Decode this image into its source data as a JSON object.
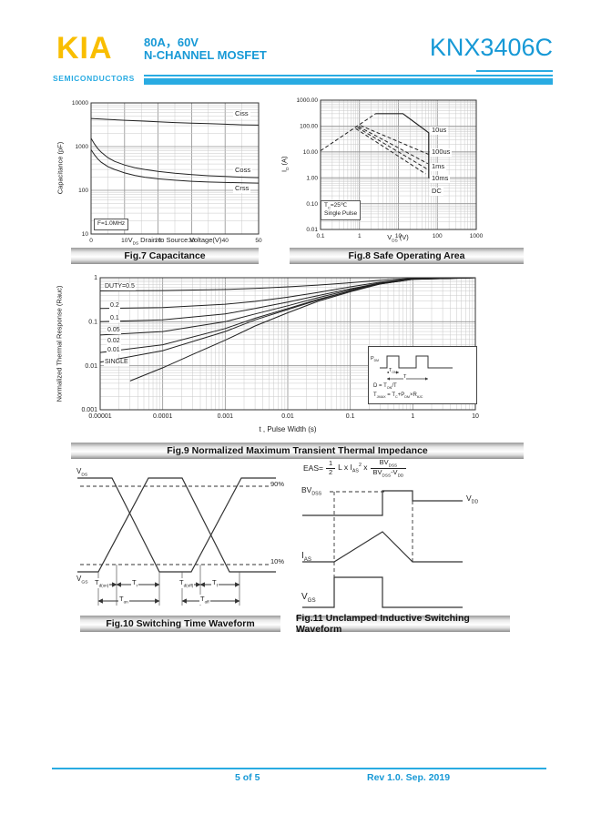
{
  "header": {
    "logo_text": "KIA",
    "logo_sub": "SEMICONDUCTORS",
    "rating": "80A，60V",
    "device_type": "N-CHANNEL MOSFET",
    "part_number": "KNX3406C"
  },
  "colors": {
    "accent_blue": "#1799d6",
    "bar_cyan": "#29abe2",
    "logo_yellow": "#f9be00"
  },
  "chart_data": [
    {
      "id": "fig7",
      "type": "line",
      "title": "Fig.7 Capacitance",
      "xlabel_rich": [
        [
          "t",
          "V"
        ],
        [
          "b",
          "DS"
        ],
        [
          "t",
          " Drain to Source Voltage(V)"
        ]
      ],
      "ylabel": "Capacitance (pF)",
      "xscale": "linear",
      "xlim": [
        0,
        50
      ],
      "xminor": 5,
      "xtick_values": [
        0,
        10,
        20,
        30,
        40,
        50
      ],
      "xtick_labels": [
        "0",
        "10",
        "20",
        "30",
        "40",
        "50"
      ],
      "yscale": "log",
      "ylim": [
        10,
        10000
      ],
      "ytick_values": [
        10,
        100,
        1000,
        10000
      ],
      "ytick_labels": [
        "10",
        "100",
        "1000",
        "10000"
      ],
      "grid": true,
      "annotation": "F=1.0MHz",
      "series": [
        {
          "name": "Ciss",
          "dash": false,
          "points": [
            [
              0,
              4400
            ],
            [
              5,
              4200
            ],
            [
              10,
              4000
            ],
            [
              15,
              3850
            ],
            [
              20,
              3700
            ],
            [
              25,
              3550
            ],
            [
              30,
              3450
            ],
            [
              35,
              3350
            ],
            [
              40,
              3250
            ],
            [
              45,
              3150
            ],
            [
              50,
              3100
            ]
          ]
        },
        {
          "name": "Coss",
          "dash": false,
          "points": [
            [
              0,
              1550
            ],
            [
              1,
              1150
            ],
            [
              2,
              900
            ],
            [
              3,
              750
            ],
            [
              5,
              560
            ],
            [
              7,
              460
            ],
            [
              10,
              380
            ],
            [
              13,
              330
            ],
            [
              16,
              300
            ],
            [
              20,
              270
            ],
            [
              25,
              245
            ],
            [
              30,
              228
            ],
            [
              35,
              215
            ],
            [
              40,
              207
            ],
            [
              45,
              200
            ],
            [
              50,
              195
            ]
          ]
        },
        {
          "name": "Crss",
          "dash": false,
          "points": [
            [
              0,
              850
            ],
            [
              1,
              650
            ],
            [
              2,
              520
            ],
            [
              3,
              440
            ],
            [
              5,
              350
            ],
            [
              7,
              300
            ],
            [
              10,
              250
            ],
            [
              13,
              220
            ],
            [
              16,
              200
            ],
            [
              20,
              183
            ],
            [
              25,
              170
            ],
            [
              30,
              161
            ],
            [
              35,
              155
            ],
            [
              40,
              151
            ],
            [
              45,
              148
            ],
            [
              50,
              146
            ]
          ]
        }
      ]
    },
    {
      "id": "fig8",
      "type": "line",
      "title": "Fig.8 Safe Operating Area",
      "xlabel_rich": [
        [
          "t",
          "V"
        ],
        [
          "b",
          "DS"
        ],
        [
          "t",
          " (V)"
        ]
      ],
      "ylabel_rich": [
        [
          "t",
          "I"
        ],
        [
          "b",
          "D"
        ],
        [
          "t",
          " (A)"
        ]
      ],
      "xscale": "log",
      "xlim": [
        0.1,
        1000
      ],
      "xtick_values": [
        0.1,
        1,
        10,
        100,
        1000
      ],
      "xtick_labels": [
        "0.1",
        "1",
        "10",
        "100",
        "1000"
      ],
      "yscale": "log",
      "ylim": [
        0.01,
        1000
      ],
      "ytick_values": [
        0.01,
        0.1,
        1,
        10,
        100,
        1000
      ],
      "ytick_labels": [
        "0.01",
        "0.10",
        "1.00",
        "10.00",
        "100.00",
        "1000.00"
      ],
      "grid": true,
      "annotation_lines": [
        [
          [
            "t",
            "T"
          ],
          [
            "b",
            "C"
          ],
          [
            "t",
            "=25℃"
          ]
        ],
        [
          [
            "t",
            "Single Pulse"
          ]
        ]
      ],
      "series": [
        {
          "name": "",
          "dash": true,
          "points": [
            [
              0.1,
              11
            ],
            [
              2.6,
              300
            ]
          ]
        },
        {
          "name": "10us",
          "dash": false,
          "w": 1.2,
          "points": [
            [
              2.6,
              300
            ],
            [
              13,
              300
            ],
            [
              60,
              55
            ],
            [
              60,
              0.95
            ]
          ]
        },
        {
          "name": "100us",
          "dash": true,
          "points": [
            [
              1.05,
              105
            ],
            [
              60,
              8
            ]
          ]
        },
        {
          "name": "1ms",
          "dash": true,
          "points": [
            [
              0.95,
              95
            ],
            [
              57,
              3.5
            ]
          ]
        },
        {
          "name": "10ms",
          "dash": true,
          "points": [
            [
              0.88,
              88
            ],
            [
              54,
              2.2
            ]
          ]
        },
        {
          "name": "DC",
          "dash": true,
          "points": [
            [
              0.8,
              80
            ],
            [
              50,
              1.4
            ]
          ]
        }
      ]
    },
    {
      "id": "fig9",
      "type": "line",
      "title": "Fig.9 Normalized Maximum Transient Thermal Impedance",
      "xlabel": "t , Pulse Width (s)",
      "ylabel": "Normalized Thermal Response (Rauc)",
      "xscale": "log",
      "xlim": [
        1e-05,
        10
      ],
      "xtick_values": [
        1e-05,
        0.0001,
        0.001,
        0.01,
        0.1,
        1,
        10
      ],
      "xtick_labels": [
        "0.00001",
        "0.0001",
        "0.001",
        "0.01",
        "0.1",
        "1",
        "10"
      ],
      "yscale": "log",
      "ylim": [
        0.001,
        1
      ],
      "ytick_values": [
        0.001,
        0.01,
        0.1,
        1
      ],
      "ytick_labels": [
        "0.001",
        "0.01",
        "0.1",
        "1"
      ],
      "grid": true,
      "series": [
        {
          "name": "DUTY=0.5",
          "points": [
            [
              1e-05,
              0.5
            ],
            [
              0.0001,
              0.51
            ],
            [
              0.001,
              0.54
            ],
            [
              0.003,
              0.57
            ],
            [
              0.01,
              0.62
            ],
            [
              0.03,
              0.68
            ],
            [
              0.1,
              0.77
            ],
            [
              0.3,
              0.87
            ],
            [
              1,
              0.97
            ],
            [
              10,
              1.0
            ]
          ]
        },
        {
          "name": "0.2",
          "points": [
            [
              1e-05,
              0.2
            ],
            [
              0.0001,
              0.21
            ],
            [
              0.001,
              0.25
            ],
            [
              0.003,
              0.29
            ],
            [
              0.01,
              0.36
            ],
            [
              0.03,
              0.46
            ],
            [
              0.1,
              0.62
            ],
            [
              0.3,
              0.79
            ],
            [
              1,
              0.95
            ],
            [
              10,
              1.0
            ]
          ]
        },
        {
          "name": "0.1",
          "points": [
            [
              1e-05,
              0.1
            ],
            [
              0.0001,
              0.11
            ],
            [
              0.001,
              0.15
            ],
            [
              0.003,
              0.2
            ],
            [
              0.01,
              0.28
            ],
            [
              0.03,
              0.39
            ],
            [
              0.1,
              0.56
            ],
            [
              0.3,
              0.76
            ],
            [
              1,
              0.94
            ],
            [
              10,
              1.0
            ]
          ]
        },
        {
          "name": "0.05",
          "points": [
            [
              1e-05,
              0.05
            ],
            [
              0.0001,
              0.06
            ],
            [
              0.001,
              0.1
            ],
            [
              0.003,
              0.15
            ],
            [
              0.01,
              0.23
            ],
            [
              0.03,
              0.35
            ],
            [
              0.1,
              0.53
            ],
            [
              0.3,
              0.74
            ],
            [
              1,
              0.93
            ],
            [
              10,
              1.0
            ]
          ]
        },
        {
          "name": "0.02",
          "points": [
            [
              1e-05,
              0.02
            ],
            [
              0.0001,
              0.03
            ],
            [
              0.001,
              0.07
            ],
            [
              0.003,
              0.12
            ],
            [
              0.01,
              0.2
            ],
            [
              0.03,
              0.32
            ],
            [
              0.1,
              0.5
            ],
            [
              0.3,
              0.73
            ],
            [
              1,
              0.93
            ],
            [
              10,
              1.0
            ]
          ]
        },
        {
          "name": "0.01",
          "points": [
            [
              1e-05,
              0.012
            ],
            [
              0.0001,
              0.022
            ],
            [
              0.001,
              0.06
            ],
            [
              0.003,
              0.11
            ],
            [
              0.01,
              0.19
            ],
            [
              0.03,
              0.31
            ],
            [
              0.1,
              0.5
            ],
            [
              0.3,
              0.72
            ],
            [
              1,
              0.92
            ],
            [
              10,
              1.0
            ]
          ]
        },
        {
          "name": "SINGLE",
          "points": [
            [
              3e-05,
              0.0045
            ],
            [
              0.0001,
              0.009
            ],
            [
              0.0003,
              0.018
            ],
            [
              0.001,
              0.038
            ],
            [
              0.003,
              0.08
            ],
            [
              0.01,
              0.16
            ],
            [
              0.03,
              0.29
            ],
            [
              0.1,
              0.48
            ],
            [
              0.3,
              0.72
            ],
            [
              1,
              0.92
            ],
            [
              10,
              1.0
            ]
          ]
        }
      ]
    }
  ],
  "fig9_inset": {
    "pdm": [
      [
        "t",
        "P"
      ],
      [
        "b",
        "DM"
      ]
    ],
    "ton": [
      [
        "t",
        "T"
      ],
      [
        "b",
        "ON"
      ]
    ],
    "period": "T",
    "f1": [
      [
        "t",
        "D = T"
      ],
      [
        "b",
        "ON"
      ],
      [
        "t",
        "/T"
      ]
    ],
    "f2": [
      [
        "t",
        "T"
      ],
      [
        "b",
        "JMAX"
      ],
      [
        "t",
        " = T"
      ],
      [
        "b",
        "C"
      ],
      [
        "t",
        "+P"
      ],
      [
        "b",
        "DM"
      ],
      [
        "t",
        "×R"
      ],
      [
        "b",
        "θJC"
      ]
    ]
  },
  "fig10": {
    "vds": [
      [
        "t",
        "V"
      ],
      [
        "b",
        "DS"
      ]
    ],
    "vgs": [
      [
        "t",
        "V"
      ],
      [
        "b",
        "GS"
      ]
    ],
    "p90": "90%",
    "p10": "10%",
    "td_on": [
      [
        "t",
        "T"
      ],
      [
        "b",
        "d(on)"
      ]
    ],
    "tr": [
      [
        "t",
        "T"
      ],
      [
        "b",
        "r"
      ]
    ],
    "td_off": [
      [
        "t",
        "T"
      ],
      [
        "b",
        "d(off)"
      ]
    ],
    "tf": [
      [
        "t",
        "T"
      ],
      [
        "b",
        "f"
      ]
    ],
    "t_on": [
      [
        "t",
        "T"
      ],
      [
        "b",
        "on"
      ]
    ],
    "t_off": [
      [
        "t",
        "T"
      ],
      [
        "b",
        "off"
      ]
    ]
  },
  "fig11": {
    "eas_lhs": "EAS=",
    "frac1_num": "1",
    "frac1_den": "2",
    "eas_mid": [
      [
        "t",
        "L x I"
      ],
      [
        "b",
        "AS"
      ],
      [
        "p",
        "2"
      ],
      [
        "t",
        " x"
      ]
    ],
    "frac2_num": [
      [
        "t",
        "BV"
      ],
      [
        "b",
        "DSS"
      ]
    ],
    "frac2_den": [
      [
        "t",
        "BV"
      ],
      [
        "b",
        "DSS"
      ],
      [
        "t",
        "-V"
      ],
      [
        "b",
        "DD"
      ]
    ],
    "bvdss": [
      [
        "t",
        "BV"
      ],
      [
        "b",
        "DSS"
      ]
    ],
    "vdd": [
      [
        "t",
        "V"
      ],
      [
        "b",
        "DD"
      ]
    ],
    "ias": [
      [
        "t",
        "I"
      ],
      [
        "b",
        "AS"
      ]
    ],
    "vgs": [
      [
        "t",
        "V"
      ],
      [
        "b",
        "GS"
      ]
    ]
  },
  "captions": {
    "fig10": "Fig.10 Switching Time Waveform",
    "fig11": "Fig.11 Unclamped Inductive Switching Waveform"
  },
  "footer": {
    "page": "5 of 5",
    "revision": "Rev 1.0. Sep. 2019"
  }
}
